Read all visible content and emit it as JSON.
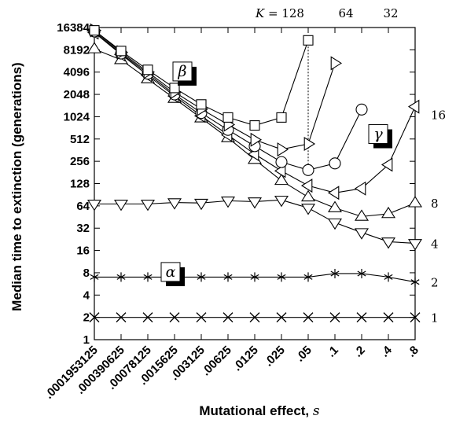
{
  "chart_data": {
    "type": "line",
    "xlabel": "Mutational effect,",
    "xlabel_var": "s",
    "ylabel": "Median time to extinction (generations)",
    "y_scale": "log2",
    "ylim": [
      1,
      16384
    ],
    "y_ticks": [
      1,
      2,
      4,
      8,
      16,
      32,
      64,
      128,
      256,
      512,
      1024,
      2048,
      4096,
      8192,
      16384
    ],
    "x_categories": [
      ".0001953125",
      ".000390625",
      ".00078125",
      ".0015625",
      ".003125",
      ".00625",
      ".0125",
      ".025",
      ".05",
      ".1",
      ".2",
      ".4",
      ".8"
    ],
    "k_prefix": "K = ",
    "marker_line_x": ".05",
    "region_labels": [
      {
        "id": "alpha",
        "text": "α"
      },
      {
        "id": "beta",
        "text": "β"
      },
      {
        "id": "gamma",
        "text": "γ"
      }
    ],
    "series": [
      {
        "name": "128",
        "label_position": "top",
        "marker": "square",
        "values": [
          15000,
          7900,
          4400,
          2500,
          1500,
          1000,
          780,
          1000,
          11000,
          null,
          null,
          null,
          null
        ]
      },
      {
        "name": "64",
        "label_position": "top",
        "marker": "triangle-right",
        "values": [
          15000,
          7600,
          4100,
          2200,
          1300,
          800,
          500,
          370,
          440,
          5400,
          null,
          null,
          null
        ]
      },
      {
        "name": "32",
        "label_position": "top",
        "marker": "circle",
        "values": [
          14500,
          7300,
          3900,
          2050,
          1150,
          680,
          410,
          250,
          195,
          240,
          1280,
          null,
          null
        ]
      },
      {
        "name": "16",
        "label_position": "right",
        "marker": "triangle-left",
        "values": [
          14000,
          7100,
          3700,
          1950,
          1050,
          580,
          320,
          190,
          120,
          96,
          110,
          230,
          1400
        ]
      },
      {
        "name": "8",
        "label_position": "right",
        "marker": "triangle-up",
        "values": [
          8400,
          6000,
          3300,
          1800,
          980,
          530,
          270,
          140,
          84,
          60,
          46,
          50,
          70
        ]
      },
      {
        "name": "4",
        "label_position": "right",
        "marker": "triangle-down",
        "values": [
          68,
          68,
          68,
          71,
          70,
          75,
          73,
          77,
          60,
          38,
          28,
          21,
          20
        ]
      },
      {
        "name": "2",
        "label_position": "right",
        "marker": "asterisk",
        "values": [
          7,
          7,
          7,
          7,
          7,
          7,
          7,
          7,
          7,
          7.8,
          7.8,
          7,
          6
        ]
      },
      {
        "name": "1",
        "label_position": "right",
        "marker": "cross",
        "values": [
          2,
          2,
          2,
          2,
          2,
          2,
          2,
          2,
          2,
          2,
          2,
          2,
          2
        ]
      }
    ]
  }
}
